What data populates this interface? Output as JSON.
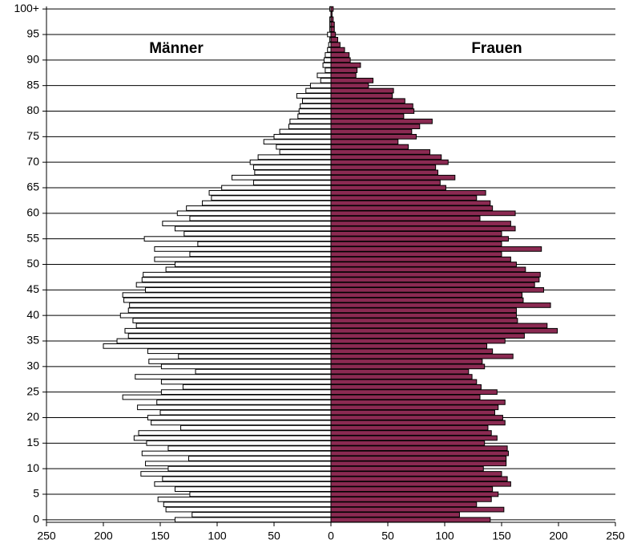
{
  "chart_data": {
    "type": "bar",
    "orientation": "horizontal",
    "grid": true,
    "categories": [
      0,
      null,
      null,
      null,
      null,
      5,
      null,
      null,
      null,
      null,
      10,
      null,
      null,
      null,
      null,
      15,
      null,
      null,
      null,
      null,
      20,
      null,
      null,
      null,
      null,
      25,
      null,
      null,
      null,
      null,
      30,
      null,
      null,
      null,
      null,
      35,
      null,
      null,
      null,
      null,
      40,
      null,
      null,
      null,
      null,
      45,
      null,
      null,
      null,
      null,
      50,
      null,
      null,
      null,
      null,
      55,
      null,
      null,
      null,
      null,
      60,
      null,
      null,
      null,
      null,
      65,
      null,
      null,
      null,
      null,
      70,
      null,
      null,
      null,
      null,
      75,
      null,
      null,
      null,
      null,
      80,
      null,
      null,
      null,
      null,
      85,
      null,
      null,
      null,
      null,
      90,
      null,
      null,
      null,
      null,
      95,
      null,
      null,
      null,
      null,
      "100+"
    ],
    "xlim": [
      -250,
      250
    ],
    "xticks": [
      {
        "value": -250,
        "label": "250"
      },
      {
        "value": -200,
        "label": "200"
      },
      {
        "value": -150,
        "label": "150"
      },
      {
        "value": -100,
        "label": "100"
      },
      {
        "value": -50,
        "label": "50"
      },
      0,
      50,
      100,
      150,
      200,
      250
    ],
    "series": [
      {
        "name": "Männer",
        "color": "#ffffff",
        "values": [
          -137,
          -122,
          -145,
          -147,
          -152,
          -124,
          -137,
          -155,
          -148,
          -167,
          -143,
          -163,
          -125,
          -166,
          -143,
          -162,
          -173,
          -169,
          -132,
          -158,
          -161,
          -150,
          -170,
          -153,
          -183,
          -149,
          -130,
          -149,
          -172,
          -119,
          -149,
          -160,
          -134,
          -161,
          -200,
          -188,
          -178,
          -181,
          -171,
          -174,
          -185,
          -178,
          -177,
          -182,
          -183,
          -163,
          -171,
          -166,
          -165,
          -145,
          -137,
          -155,
          -124,
          -155,
          -117,
          -164,
          -129,
          -137,
          -148,
          -124,
          -135,
          -127,
          -113,
          -105,
          -107,
          -96,
          -68,
          -87,
          -67,
          -68,
          -71,
          -64,
          -45,
          -48,
          -59,
          -50,
          -45,
          -37,
          -36,
          -29,
          -28,
          -27,
          -25,
          -30,
          -22,
          -18,
          -9,
          -12,
          -5,
          -7,
          -6,
          -5,
          -3,
          -2,
          -1,
          -3,
          -1,
          -1,
          -1,
          0,
          -1
        ]
      },
      {
        "name": "Frauen",
        "color": "#8b2a52",
        "values": [
          140,
          113,
          152,
          128,
          141,
          147,
          142,
          158,
          155,
          150,
          134,
          154,
          154,
          156,
          155,
          135,
          146,
          141,
          138,
          153,
          151,
          144,
          147,
          153,
          131,
          146,
          132,
          128,
          124,
          121,
          135,
          133,
          160,
          142,
          137,
          153,
          170,
          199,
          190,
          164,
          163,
          163,
          193,
          169,
          168,
          187,
          179,
          183,
          184,
          171,
          163,
          158,
          150,
          185,
          150,
          156,
          150,
          162,
          158,
          131,
          162,
          142,
          140,
          128,
          136,
          101,
          96,
          109,
          94,
          92,
          103,
          97,
          87,
          68,
          59,
          75,
          71,
          78,
          89,
          64,
          73,
          72,
          65,
          54,
          55,
          33,
          37,
          22,
          23,
          26,
          17,
          16,
          12,
          8,
          6,
          4,
          3,
          3,
          2,
          1,
          2
        ]
      }
    ]
  }
}
